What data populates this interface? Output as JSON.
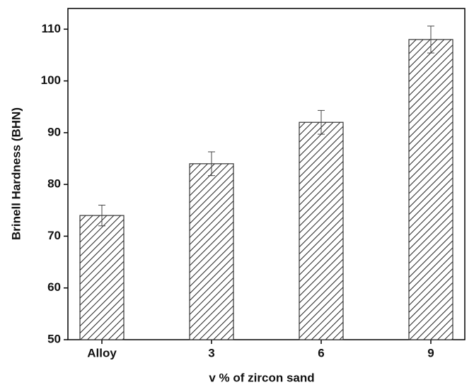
{
  "chart_data": {
    "type": "bar",
    "x_label": "v % of zircon sand",
    "y_label": "Brinell Hardness (BHN)",
    "categories": [
      "Alloy",
      "3",
      "6",
      "9"
    ],
    "values": [
      74,
      84,
      92,
      108
    ],
    "errors": [
      2.0,
      2.3,
      2.3,
      2.6
    ],
    "color": "#333333",
    "ylim": [
      50,
      114
    ],
    "yticks": [
      50,
      60,
      70,
      80,
      90,
      100,
      110
    ]
  }
}
